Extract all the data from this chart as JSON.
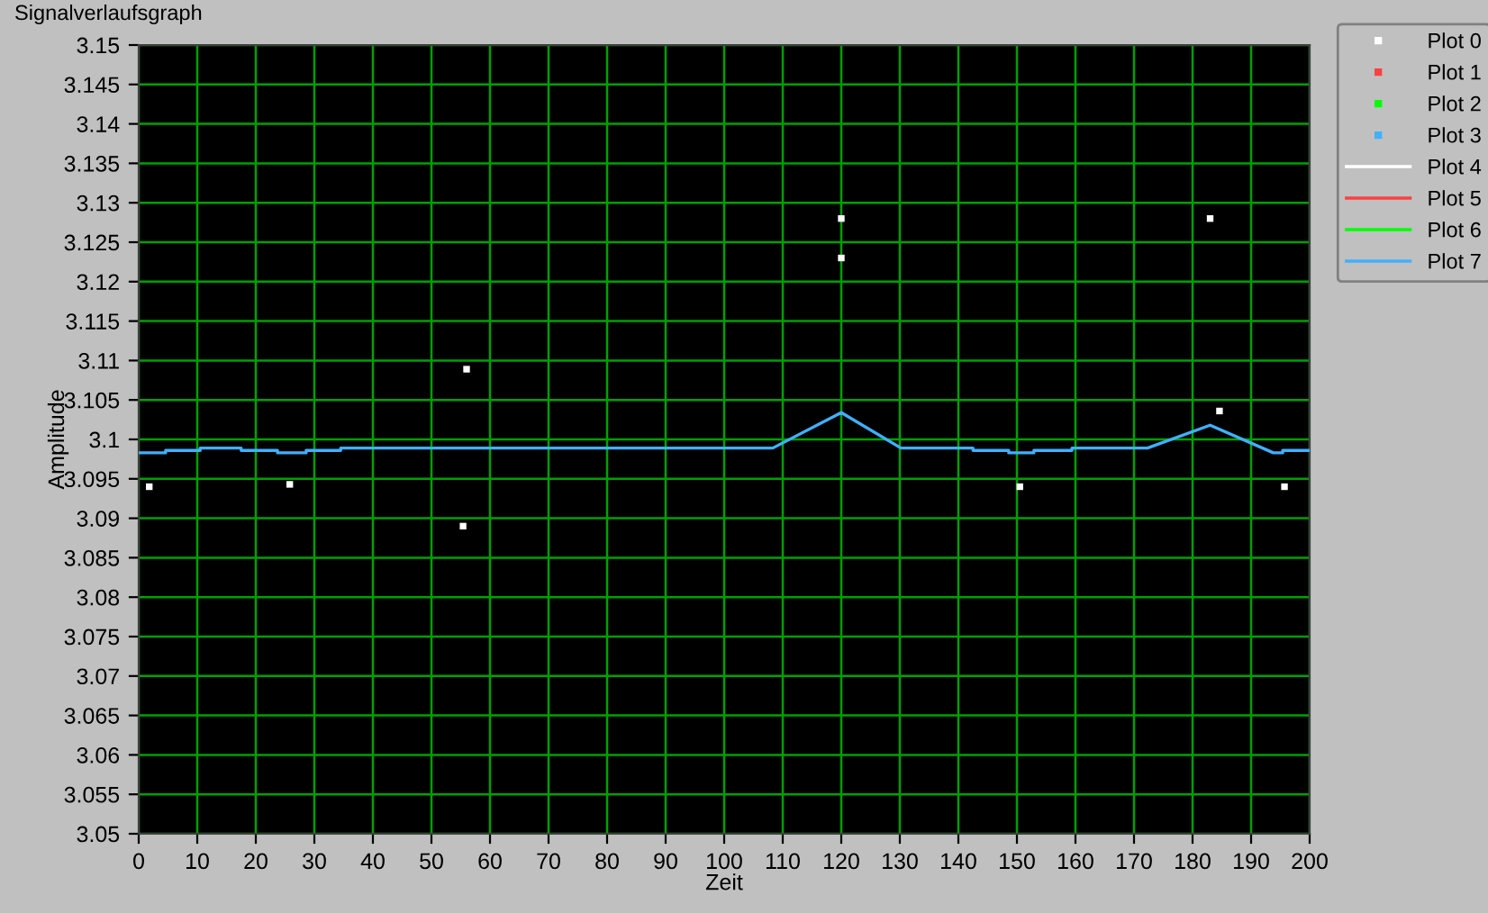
{
  "chart_data": {
    "type": "line",
    "title": "Signalverlaufsgraph",
    "xlabel": "Zeit",
    "ylabel": "Amplitude",
    "xlim": [
      0,
      200
    ],
    "xticks": [
      0,
      10,
      20,
      30,
      40,
      50,
      60,
      70,
      80,
      90,
      100,
      110,
      120,
      130,
      140,
      150,
      160,
      170,
      180,
      190,
      200
    ],
    "ylim": [
      3.05,
      3.15
    ],
    "yticks": [
      3.05,
      3.055,
      3.06,
      3.065,
      3.07,
      3.075,
      3.08,
      3.085,
      3.09,
      3.095,
      3.1,
      3.105,
      3.11,
      3.115,
      3.12,
      3.125,
      3.13,
      3.135,
      3.14,
      3.145,
      3.15
    ],
    "grid": true,
    "legend": "right",
    "marker": "none",
    "line_style": "solid",
    "series": [
      {
        "name": "Plot 0",
        "type": "scatter",
        "marker": "square",
        "color": "#ffffff",
        "x": [
          1.8,
          25.8,
          55.4,
          56,
          120,
          120,
          150.5,
          183,
          184.6,
          195.7
        ],
        "values": [
          3.094,
          3.0943,
          3.089,
          3.1089,
          3.123,
          3.128,
          3.094,
          3.128,
          3.1036,
          3.094
        ]
      },
      {
        "name": "Plot 1",
        "type": "scatter",
        "marker": "square",
        "color": "#ff4040"
      },
      {
        "name": "Plot 2",
        "type": "scatter",
        "marker": "square",
        "color": "#00ff00"
      },
      {
        "name": "Plot 3",
        "type": "scatter",
        "marker": "square",
        "color": "#40b0ff"
      },
      {
        "name": "Plot 4",
        "color": "#ffffff"
      },
      {
        "name": "Plot 5",
        "color": "#ff4040"
      },
      {
        "name": "Plot 6",
        "color": "#00ff00"
      },
      {
        "name": "Plot 7",
        "color": "#40b0ff",
        "x": [
          0,
          4.6,
          4.6,
          10.5,
          10.5,
          17.5,
          17.5,
          23.7,
          23.7,
          28.6,
          28.6,
          34.5,
          34.5,
          108.3,
          120,
          130.2,
          142.5,
          142.5,
          148.6,
          148.6,
          152.9,
          152.9,
          159.4,
          159.4,
          172.3,
          183,
          193.8,
          195.4,
          195.4,
          200
        ],
        "values": [
          3.0983,
          3.0983,
          3.0986,
          3.0986,
          3.0989,
          3.0989,
          3.0986,
          3.0986,
          3.0983,
          3.0983,
          3.0986,
          3.0986,
          3.0989,
          3.0989,
          3.1034,
          3.0989,
          3.0989,
          3.0986,
          3.0986,
          3.0983,
          3.0983,
          3.0986,
          3.0986,
          3.0989,
          3.0989,
          3.1018,
          3.0983,
          3.0983,
          3.0986,
          3.0986
        ]
      }
    ]
  }
}
